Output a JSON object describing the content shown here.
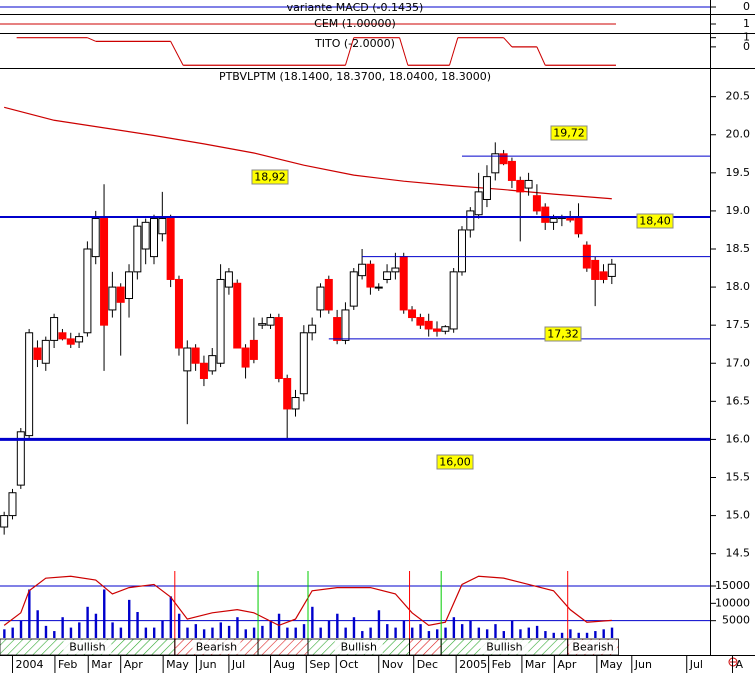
{
  "chart_data": [
    {
      "type": "indicator",
      "title": "variante MACD (-0.1435)",
      "ylim": [
        -1,
        1
      ],
      "yticks": [
        0
      ],
      "color": "#0000cc"
    },
    {
      "type": "level",
      "title": "CEM (1.00000)",
      "value": 1,
      "ylim": [
        0,
        2
      ],
      "yticks": [
        1
      ],
      "color": "#cc0000"
    },
    {
      "type": "step",
      "title": "TITO (-2.0000)",
      "ylim": [
        -2.3,
        1.4
      ],
      "yticks": [
        1,
        0
      ],
      "color": "#cc0000",
      "steps": [
        {
          "from": 1.5,
          "to": 10,
          "value": 1
        },
        {
          "from": 11,
          "to": 20,
          "value": 0.6
        },
        {
          "from": 21.5,
          "to": 41,
          "value": -2
        },
        {
          "from": 42,
          "to": 47.5,
          "value": 1
        },
        {
          "from": 48.5,
          "to": 53.5,
          "value": -2
        },
        {
          "from": 54.5,
          "to": 60,
          "value": 1
        },
        {
          "from": 61,
          "to": 64,
          "value": 0
        },
        {
          "from": 65,
          "to": 73.5,
          "value": -2
        }
      ]
    },
    {
      "type": "candlestick",
      "title": "PTBVLPTM (18.1400, 18.3700, 18.0400, 18.3000)",
      "up_color": "#ffffff",
      "down_color": "#ff0000",
      "open": [
        14.85,
        15.0,
        15.4,
        16.05,
        17.2,
        17.0,
        17.3,
        17.4,
        17.32,
        17.28,
        17.4,
        18.4,
        18.9,
        17.7,
        18.0,
        17.85,
        18.2,
        18.5,
        18.4,
        18.7,
        18.92,
        18.1,
        16.9,
        17.2,
        17.0,
        16.9,
        17.0,
        18.0,
        18.05,
        17.2,
        17.3,
        17.5,
        17.5,
        17.6,
        16.8,
        16.4,
        16.6,
        17.4,
        17.7,
        18.1,
        17.6,
        17.3,
        17.75,
        18.15,
        18.3,
        18.0,
        18.1,
        18.2,
        18.4,
        17.7,
        17.6,
        17.55,
        17.45,
        17.42,
        17.45,
        18.2,
        18.75,
        18.95,
        19.15,
        19.5,
        19.75,
        19.65,
        19.4,
        19.3,
        19.2,
        19.05,
        18.85,
        18.9,
        18.9,
        18.92,
        18.55,
        18.35,
        18.2,
        18.14
      ],
      "high": [
        15.05,
        15.35,
        16.15,
        17.45,
        17.3,
        17.35,
        17.65,
        17.45,
        17.4,
        17.4,
        18.6,
        19.0,
        19.35,
        18.2,
        18.05,
        18.3,
        18.9,
        18.9,
        18.95,
        19.25,
        18.95,
        18.15,
        17.3,
        17.25,
        17.1,
        17.2,
        18.3,
        18.25,
        18.1,
        17.25,
        17.6,
        17.6,
        17.65,
        17.65,
        16.85,
        16.65,
        17.5,
        17.6,
        18.05,
        18.15,
        17.7,
        17.8,
        18.25,
        18.5,
        18.35,
        18.05,
        18.3,
        18.45,
        18.45,
        17.75,
        17.65,
        17.65,
        17.55,
        17.5,
        18.25,
        18.8,
        19.05,
        19.5,
        19.6,
        19.9,
        19.8,
        19.7,
        19.45,
        19.5,
        19.35,
        19.1,
        18.95,
        18.95,
        19.0,
        19.1,
        18.6,
        18.4,
        18.3,
        18.37
      ],
      "low": [
        14.75,
        14.95,
        15.35,
        16.0,
        16.95,
        16.9,
        17.2,
        17.3,
        17.2,
        17.2,
        17.35,
        18.3,
        16.9,
        17.6,
        17.1,
        17.6,
        18.1,
        18.3,
        18.3,
        18.6,
        18.0,
        17.1,
        16.2,
        16.9,
        16.7,
        16.85,
        16.95,
        17.9,
        17.2,
        16.8,
        17.0,
        17.45,
        17.45,
        16.75,
        16.0,
        16.3,
        16.5,
        17.3,
        17.6,
        17.65,
        17.25,
        17.25,
        17.7,
        18.1,
        17.9,
        17.95,
        18.05,
        18.1,
        17.65,
        17.55,
        17.45,
        17.35,
        17.35,
        17.38,
        17.4,
        18.15,
        18.65,
        18.9,
        19.05,
        19.4,
        19.6,
        19.3,
        18.6,
        19.2,
        18.95,
        18.75,
        18.75,
        18.8,
        18.85,
        18.65,
        18.2,
        17.75,
        18.05,
        18.04
      ],
      "close": [
        15.0,
        15.3,
        16.1,
        17.4,
        17.05,
        17.3,
        17.6,
        17.32,
        17.25,
        17.35,
        18.5,
        18.9,
        17.5,
        18.0,
        17.8,
        18.2,
        18.8,
        18.85,
        18.9,
        18.9,
        18.1,
        17.2,
        17.2,
        17.0,
        16.8,
        17.1,
        18.1,
        18.2,
        17.2,
        16.95,
        17.05,
        17.52,
        17.6,
        16.8,
        16.4,
        16.55,
        17.4,
        17.5,
        18.0,
        17.7,
        17.3,
        17.7,
        18.2,
        18.3,
        18.0,
        18.0,
        18.2,
        18.25,
        17.7,
        17.6,
        17.5,
        17.45,
        17.42,
        17.48,
        18.2,
        18.75,
        19.0,
        19.25,
        19.45,
        19.75,
        19.62,
        19.4,
        19.25,
        19.4,
        19.0,
        18.85,
        18.9,
        18.92,
        18.88,
        18.7,
        18.25,
        18.1,
        18.1,
        18.3
      ],
      "xlim": [
        -0.5,
        89
      ],
      "ylim": [
        14.22,
        20.85
      ],
      "yticks": [
        {
          "value": 14.5,
          "label": "14.5"
        },
        {
          "value": 15,
          "label": "15.0"
        },
        15.5,
        {
          "value": 16,
          "label": "16.0"
        },
        16.5,
        {
          "value": 17,
          "label": "17.0"
        },
        17.5,
        {
          "value": 18,
          "label": "18.0"
        },
        18.5,
        {
          "value": 19,
          "label": "19.0"
        },
        19.5,
        {
          "value": 20,
          "label": "20.0"
        },
        20.5
      ],
      "xticks": [
        {
          "value": 1,
          "label": "2004"
        },
        {
          "value": 6.1,
          "label": "Feb"
        },
        {
          "value": 10.1,
          "label": "Mar"
        },
        {
          "value": 14,
          "label": "Apr"
        },
        {
          "value": 19.1,
          "label": "May"
        },
        {
          "value": 23.1,
          "label": "Jun"
        },
        {
          "value": 27,
          "label": "Jul"
        },
        {
          "value": 32,
          "label": "Aug"
        },
        {
          "value": 36.3,
          "label": "Sep"
        },
        {
          "value": 39.9,
          "label": "Oct"
        },
        {
          "value": 45,
          "label": "Nov"
        },
        {
          "value": 49.2,
          "label": "Dec"
        },
        {
          "value": 54.3,
          "label": "2005"
        },
        {
          "value": 58.2,
          "label": "Feb"
        },
        {
          "value": 62.2,
          "label": "Mar"
        },
        {
          "value": 66.1,
          "label": "Apr"
        },
        {
          "value": 71.2,
          "label": "May"
        },
        {
          "value": 75.4,
          "label": "Jun"
        },
        {
          "value": 82,
          "label": "Jul"
        },
        {
          "value": 87.5,
          "label": "A"
        }
      ],
      "moving_average": {
        "color": "#cc0000",
        "x": [
          0,
          6,
          12,
          18,
          24,
          30,
          36,
          42,
          48,
          54,
          60,
          66,
          73
        ],
        "values": [
          20.36,
          20.19,
          20.09,
          19.99,
          19.88,
          19.76,
          19.6,
          19.47,
          19.39,
          19.33,
          19.28,
          19.22,
          19.16
        ]
      },
      "levels": [
        {
          "value": 18.92,
          "label": "18,92",
          "from": -0.5,
          "width": 2,
          "color": "#0000cc"
        },
        {
          "value": 16.0,
          "label": "16,00",
          "from": -0.5,
          "width": 3,
          "color": "#0000cc"
        },
        {
          "value": 19.72,
          "label": "19,72",
          "from": 55,
          "width": 1,
          "color": "#0000cc"
        },
        {
          "value": 18.4,
          "label": "18,40",
          "from": 43,
          "width": 1,
          "color": "#0000cc"
        },
        {
          "value": 17.32,
          "label": "17,32",
          "from": 39,
          "width": 1,
          "color": "#0000cc"
        }
      ],
      "label_color": "#ffff00"
    },
    {
      "type": "volume",
      "color": "#0000cc",
      "values": [
        2500,
        3000,
        5000,
        14000,
        8000,
        3500,
        2000,
        6000,
        3000,
        4500,
        9000,
        7000,
        14000,
        4500,
        3000,
        11000,
        7500,
        3000,
        3000,
        5000,
        12000,
        7000,
        3000,
        4000,
        2500,
        3000,
        4500,
        3500,
        6000,
        2500,
        3000,
        3500,
        5000,
        7000,
        3000,
        3000,
        4000,
        9000,
        3000,
        5000,
        7000,
        3000,
        6000,
        2000,
        3000,
        8000,
        4000,
        3000,
        5000,
        3000,
        4000,
        2000,
        2500,
        3000,
        6000,
        4000,
        5000,
        3000,
        2500,
        4000,
        2000,
        5000,
        2500,
        3000,
        3500,
        2000,
        1500,
        1500,
        2500,
        1500,
        1500,
        2000,
        2500,
        3000
      ],
      "ylim": [
        0,
        18000
      ],
      "yticks": [
        5000,
        10000,
        15000
      ],
      "stochastic": {
        "color": "#cc0000",
        "ylim": [
          0,
          100
        ],
        "x": [
          0,
          2,
          3,
          5,
          8,
          11,
          13,
          15,
          18,
          20,
          22,
          25,
          28,
          30,
          33,
          35,
          37,
          40,
          44,
          47,
          49,
          51,
          53,
          55,
          57,
          60,
          63,
          66,
          68,
          70,
          73
        ],
        "values": [
          20,
          40,
          75,
          95,
          98,
          92,
          70,
          80,
          85,
          65,
          30,
          40,
          45,
          40,
          20,
          30,
          75,
          80,
          80,
          70,
          40,
          20,
          25,
          85,
          98,
          95,
          85,
          75,
          45,
          25,
          28
        ]
      },
      "signals": [
        {
          "x": 20.5,
          "color": "#ff0000"
        },
        {
          "x": 30.5,
          "color": "#00cc00"
        },
        {
          "x": 36.5,
          "color": "#00cc00"
        },
        {
          "x": 48.7,
          "color": "#ff0000"
        },
        {
          "x": 52.5,
          "color": "#00cc00"
        },
        {
          "x": 67.7,
          "color": "#ff0000"
        }
      ],
      "regions": [
        {
          "from": -0.5,
          "to": 20.5,
          "label": "Bullish",
          "color": "#33aa33"
        },
        {
          "from": 20.5,
          "to": 30.5,
          "label": "Bearish",
          "color": "#dd2222"
        },
        {
          "from": 30.5,
          "to": 36.5,
          "label": null,
          "color": "#dd2222"
        },
        {
          "from": 36.5,
          "to": 48.7,
          "label": "Bullish",
          "color": "#33aa33"
        },
        {
          "from": 48.7,
          "to": 52.5,
          "label": null,
          "color": "#dd2222"
        },
        {
          "from": 52.5,
          "to": 67.7,
          "label": "Bullish",
          "color": "#33aa33"
        },
        {
          "from": 67.7,
          "to": 73.8,
          "label": "Bearish",
          "color": "#dd2222"
        }
      ]
    }
  ]
}
